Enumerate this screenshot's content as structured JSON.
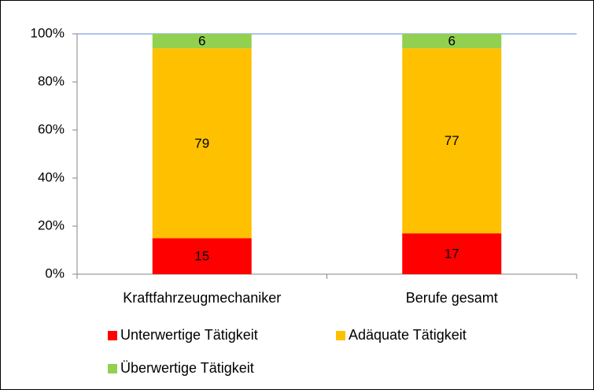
{
  "chart_data": {
    "type": "stacked_bar",
    "categories": [
      "Kraftfahrzeugmechaniker",
      "Berufe gesamt"
    ],
    "series": [
      {
        "name": "Unterwertige Tätigkeit",
        "color": "#ff0000",
        "values": [
          15,
          17
        ]
      },
      {
        "name": "Adäquate Tätigkeit",
        "color": "#ffc000",
        "values": [
          79,
          77
        ]
      },
      {
        "name": "Überwertige Tätigkeit",
        "color": "#92d050",
        "values": [
          6,
          6
        ]
      }
    ],
    "ylim": [
      0,
      100
    ],
    "yticks": [
      {
        "value": 0,
        "label": "0%"
      },
      {
        "value": 20,
        "label": "20%"
      },
      {
        "value": 40,
        "label": "40%"
      },
      {
        "value": 60,
        "label": "60%"
      },
      {
        "value": 80,
        "label": "80%"
      },
      {
        "value": 100,
        "label": "100%"
      }
    ],
    "legend": "bottom"
  }
}
